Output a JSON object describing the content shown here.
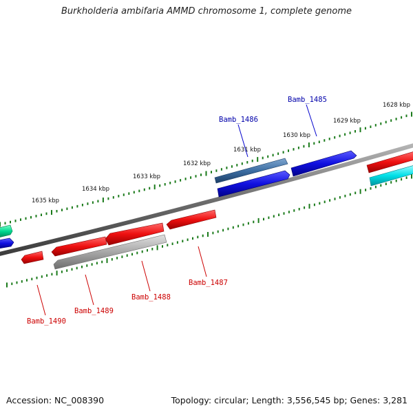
{
  "title": "Burkholderia ambifaria AMMD chromosome 1, complete genome",
  "footer": {
    "accession": "Accession: NC_008390",
    "summary": "Topology: circular; Length: 3,556,545 bp; Genes: 3,281"
  },
  "scale_labels": [
    "1628 kbp",
    "1629 kbp",
    "1630 kbp",
    "1631 kbp",
    "1632 kbp",
    "1633 kbp",
    "1634 kbp",
    "1635 kbp"
  ],
  "colors": {
    "backbone": "#7a7a7a",
    "tick": "#1a7a1a",
    "forward_gene": "#1010e0",
    "forward_gene_selected": "#3d6ea3",
    "reverse_gene": "#e81010",
    "reverse_gene_gray": "#a8a8a8",
    "cyan_gene": "#00e0e8",
    "teal_gene": "#00d890",
    "forward_label": "#0000aa",
    "reverse_label": "#cc0000"
  },
  "gene_labels": {
    "forward": [
      "Bamb_1485",
      "Bamb_1486"
    ],
    "reverse": [
      "Bamb_1487",
      "Bamb_1488",
      "Bamb_1489",
      "Bamb_1490"
    ]
  }
}
